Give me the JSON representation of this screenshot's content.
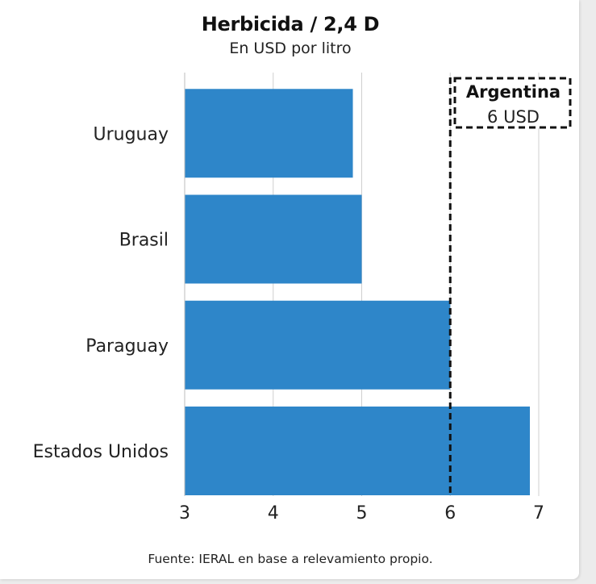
{
  "chart_data": {
    "type": "bar",
    "orientation": "horizontal",
    "title": "Herbicida / 2,4 D",
    "subtitle": "En USD por litro",
    "categories": [
      "Uruguay",
      "Brasil",
      "Paraguay",
      "Estados Unidos"
    ],
    "values": [
      4.9,
      5.0,
      6.0,
      6.9
    ],
    "xlim": [
      3,
      7
    ],
    "xticks": [
      "3",
      "4",
      "5",
      "6",
      "7"
    ],
    "xlabel": "",
    "ylabel": "",
    "grid": "vertical",
    "bar_color": "#2e86c9",
    "reference_line": {
      "value": 6,
      "style": "dashed",
      "color": "#111111",
      "label_title": "Argentina",
      "label_value": "6 USD"
    },
    "source": "Fuente: IERAL en base a relevamiento propio."
  }
}
